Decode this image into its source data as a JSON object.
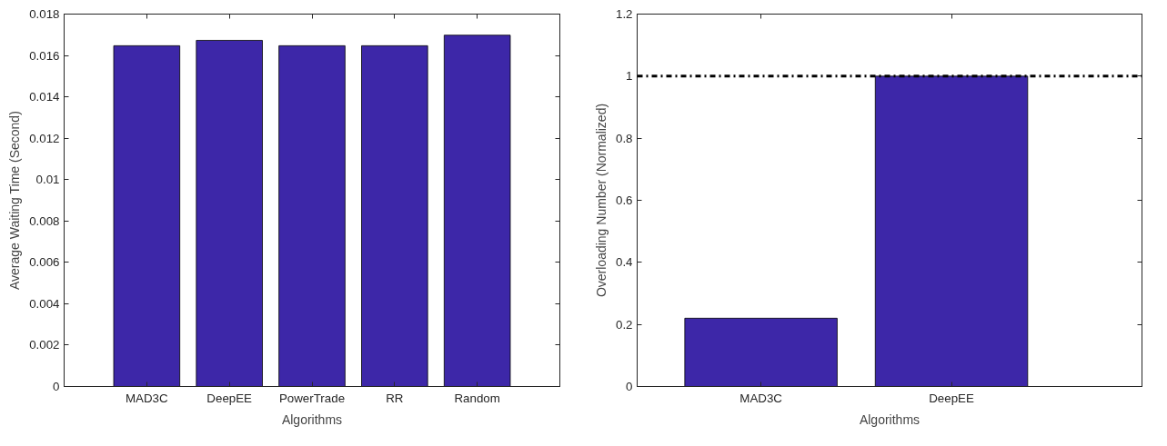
{
  "chart_data": [
    {
      "type": "bar",
      "xlabel": "Algorithms",
      "ylabel": "Average Waiting Time (Second)",
      "categories": [
        "MAD3C",
        "DeepEE",
        "PowerTrade",
        "RR",
        "Random"
      ],
      "values": [
        0.01647,
        0.01673,
        0.01647,
        0.01647,
        0.01698
      ],
      "color": "#3d27a8",
      "ylim": [
        0,
        0.018
      ],
      "yticks": [
        0,
        0.002,
        0.004,
        0.006,
        0.008,
        0.01,
        0.012,
        0.014,
        0.016,
        0.018
      ],
      "grid": false
    },
    {
      "type": "bar",
      "xlabel": "Algorithms",
      "ylabel": "Overloading Number (Normalized)",
      "categories": [
        "MAD3C",
        "DeepEE"
      ],
      "values": [
        0.22,
        1.0
      ],
      "color": "#3d27a8",
      "ylim": [
        0,
        1.2
      ],
      "yticks": [
        0,
        0.2,
        0.4,
        0.6,
        0.8,
        1,
        1.2
      ],
      "grid": false,
      "ref_lines": [
        {
          "axis": "y",
          "value": 1,
          "color": "#000000",
          "line_style": "dashdot"
        }
      ]
    }
  ]
}
